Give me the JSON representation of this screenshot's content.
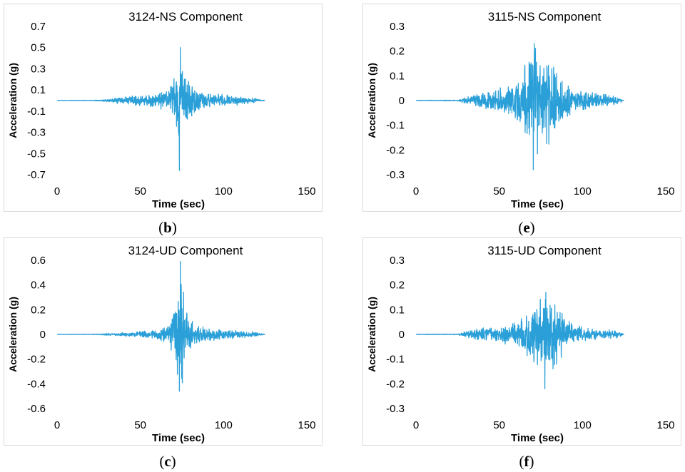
{
  "chart_data": [
    {
      "type": "line",
      "title": "3124-NS Component",
      "xlabel": "Time (sec)",
      "ylabel": "Acceleration (g)",
      "xlim": [
        0,
        150
      ],
      "ylim": [
        -0.7,
        0.7
      ],
      "xticks": [
        0,
        50,
        100,
        150
      ],
      "xtick_labels": [
        "0",
        "50",
        "100",
        "150"
      ],
      "yticks": [
        0.7,
        0.5,
        0.3,
        0.1,
        -0.1,
        -0.3,
        -0.5,
        -0.7
      ],
      "ytick_labels": [
        "0.7",
        "0.5",
        "0.3",
        "0.1",
        "-0.1",
        "-0.3",
        "-0.5",
        "-0.7"
      ],
      "series_color": "#2ba0d8",
      "series": [
        {
          "name": "3124-NS",
          "duration": 125,
          "peak_time": 74,
          "peak_positive": 0.5,
          "peak_negative": -0.66,
          "envelope": [
            [
              0,
              0.002
            ],
            [
              20,
              0.003
            ],
            [
              28,
              0.01
            ],
            [
              40,
              0.04
            ],
            [
              50,
              0.05
            ],
            [
              60,
              0.07
            ],
            [
              68,
              0.14
            ],
            [
              72,
              0.3
            ],
            [
              74,
              0.5
            ],
            [
              78,
              0.25
            ],
            [
              85,
              0.1
            ],
            [
              95,
              0.07
            ],
            [
              110,
              0.04
            ],
            [
              120,
              0.02
            ],
            [
              125,
              0.0
            ]
          ]
        }
      ],
      "caption_label": "b"
    },
    {
      "type": "line",
      "title": "3115-NS Component",
      "xlabel": "Time (sec)",
      "ylabel": "Acceleration (g)",
      "xlim": [
        0,
        150
      ],
      "ylim": [
        -0.3,
        0.3
      ],
      "xticks": [
        0,
        50,
        100,
        150
      ],
      "xtick_labels": [
        "0",
        "50",
        "100",
        "150"
      ],
      "yticks": [
        0.3,
        0.2,
        0.1,
        0,
        -0.1,
        -0.2,
        -0.3
      ],
      "ytick_labels": [
        "0.3",
        "0.2",
        "0.1",
        "0",
        "-0.1",
        "-0.2",
        "-0.3"
      ],
      "series_color": "#2ba0d8",
      "series": [
        {
          "name": "3115-NS",
          "duration": 125,
          "peak_time": 71,
          "peak_positive": 0.23,
          "peak_negative": -0.28,
          "envelope": [
            [
              0,
              0.001
            ],
            [
              25,
              0.002
            ],
            [
              30,
              0.015
            ],
            [
              40,
              0.04
            ],
            [
              45,
              0.05
            ],
            [
              55,
              0.06
            ],
            [
              62,
              0.1
            ],
            [
              68,
              0.19
            ],
            [
              72,
              0.23
            ],
            [
              78,
              0.22
            ],
            [
              85,
              0.13
            ],
            [
              95,
              0.05
            ],
            [
              110,
              0.03
            ],
            [
              120,
              0.02
            ],
            [
              125,
              0.0
            ]
          ]
        }
      ],
      "caption_label": "e"
    },
    {
      "type": "line",
      "title": "3124-UD Component",
      "xlabel": "Time (sec)",
      "ylabel": "Acceleration (g)",
      "xlim": [
        0,
        150
      ],
      "ylim": [
        -0.6,
        0.6
      ],
      "xticks": [
        0,
        50,
        100,
        150
      ],
      "xtick_labels": [
        "0",
        "50",
        "100",
        "150"
      ],
      "yticks": [
        0.6,
        0.4,
        0.2,
        0,
        -0.2,
        -0.4,
        -0.6
      ],
      "ytick_labels": [
        "0.6",
        "0.4",
        "0.2",
        "0",
        "-0.2",
        "-0.4",
        "-0.6"
      ],
      "series_color": "#2ba0d8",
      "series": [
        {
          "name": "3124-UD",
          "duration": 125,
          "peak_time": 74,
          "peak_positive": 0.59,
          "peak_negative": -0.46,
          "envelope": [
            [
              0,
              0.001
            ],
            [
              25,
              0.003
            ],
            [
              30,
              0.01
            ],
            [
              45,
              0.02
            ],
            [
              60,
              0.04
            ],
            [
              68,
              0.1
            ],
            [
              72,
              0.35
            ],
            [
              74,
              0.59
            ],
            [
              77,
              0.3
            ],
            [
              82,
              0.08
            ],
            [
              95,
              0.05
            ],
            [
              110,
              0.03
            ],
            [
              120,
              0.02
            ],
            [
              125,
              0.0
            ]
          ]
        }
      ],
      "caption_label": "c"
    },
    {
      "type": "line",
      "title": "3115-UD Component",
      "xlabel": "Time (sec)",
      "ylabel": "Acceleration (g)",
      "xlim": [
        0,
        150
      ],
      "ylim": [
        -0.3,
        0.3
      ],
      "xticks": [
        0,
        50,
        100,
        150
      ],
      "xtick_labels": [
        "0",
        "50",
        "100",
        "150"
      ],
      "yticks": [
        0.3,
        0.2,
        0.1,
        0,
        -0.1,
        -0.2,
        -0.3
      ],
      "ytick_labels": [
        "0.3",
        "0.2",
        "0.1",
        "0",
        "-0.1",
        "-0.2",
        "-0.3"
      ],
      "series_color": "#2ba0d8",
      "series": [
        {
          "name": "3115-UD",
          "duration": 125,
          "peak_time": 78,
          "peak_positive": 0.17,
          "peak_negative": -0.22,
          "envelope": [
            [
              0,
              0.001
            ],
            [
              25,
              0.002
            ],
            [
              30,
              0.015
            ],
            [
              40,
              0.03
            ],
            [
              50,
              0.03
            ],
            [
              60,
              0.06
            ],
            [
              68,
              0.11
            ],
            [
              75,
              0.16
            ],
            [
              80,
              0.17
            ],
            [
              88,
              0.1
            ],
            [
              95,
              0.04
            ],
            [
              110,
              0.02
            ],
            [
              120,
              0.02
            ],
            [
              125,
              0.0
            ]
          ]
        }
      ],
      "caption_label": "f"
    }
  ]
}
